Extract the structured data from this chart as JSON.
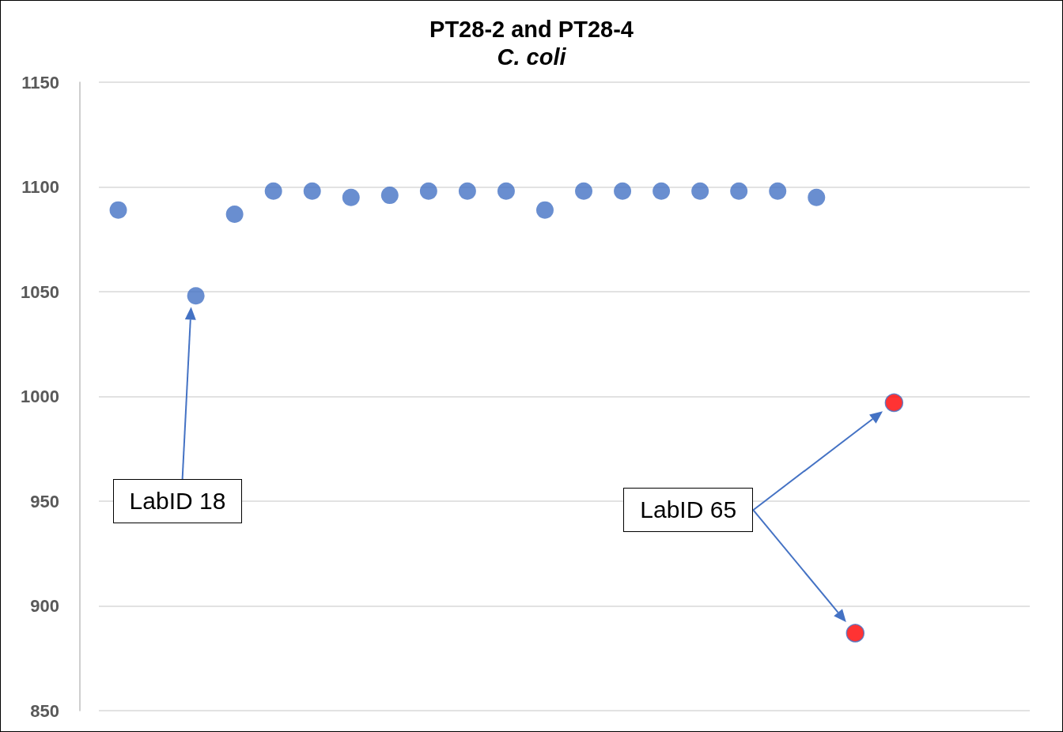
{
  "chart_data": {
    "type": "scatter",
    "title": "PT28-2 and PT28-4",
    "subtitle": "C. coli",
    "categories": [
      null,
      null,
      null,
      null,
      null,
      null,
      null,
      null,
      null,
      null,
      null,
      null,
      null,
      null,
      null,
      null,
      null,
      null,
      null,
      null,
      null,
      null,
      null,
      null
    ],
    "series": [
      {
        "color": "#4472c4",
        "values": [
          1089,
          null,
          1048,
          1087,
          1098,
          1098,
          1095,
          1096,
          1098,
          1098,
          1098,
          1089,
          1098,
          1098,
          1098,
          1098,
          1098,
          1098,
          1095,
          null,
          null,
          null,
          null,
          null
        ]
      },
      {
        "color": "#ff0000",
        "values": [
          null,
          null,
          null,
          null,
          null,
          null,
          null,
          null,
          null,
          null,
          null,
          null,
          null,
          null,
          null,
          null,
          null,
          null,
          null,
          887,
          997,
          null,
          null,
          null
        ]
      }
    ],
    "ylim": [
      850,
      1150
    ],
    "yticks": [
      850,
      900,
      950,
      1000,
      1050,
      1100,
      1150
    ],
    "grid": "y",
    "tick_labels": "y",
    "marker": "circle",
    "annotations": [
      "LabID 18",
      "LabID 65"
    ]
  }
}
